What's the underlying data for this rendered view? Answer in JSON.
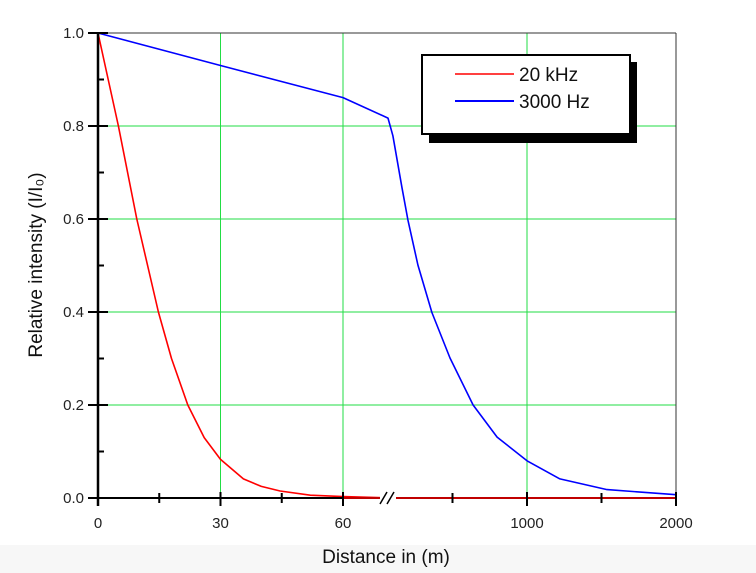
{
  "chart_data": {
    "type": "line",
    "title": "",
    "xlabel": "Distance in (m)",
    "ylabel": "Relative intensity (I/I₀)",
    "ylim": [
      0,
      1.0
    ],
    "x_axis_break": {
      "segments": [
        [
          0,
          60
        ],
        [
          60,
          2000
        ]
      ],
      "break_marker": "//"
    },
    "x_ticks": [
      {
        "value": 0,
        "label": "0"
      },
      {
        "value": 30,
        "label": "30"
      },
      {
        "value": 60,
        "label": "60"
      },
      {
        "value": 1000,
        "label": "1000"
      },
      {
        "value": 2000,
        "label": "2000"
      }
    ],
    "x_minor_ticks": [
      15,
      45,
      500,
      1500
    ],
    "y_ticks": [
      {
        "value": 0.0,
        "label": "0.0"
      },
      {
        "value": 0.2,
        "label": "0.2"
      },
      {
        "value": 0.4,
        "label": "0.4"
      },
      {
        "value": 0.6,
        "label": "0.6"
      },
      {
        "value": 0.8,
        "label": "0.8"
      },
      {
        "value": 1.0,
        "label": "1.0"
      }
    ],
    "y_minor_ticks": [
      0.1,
      0.3,
      0.5,
      0.7,
      0.9
    ],
    "grid": true,
    "grid_color": "#22dd44",
    "legend_position": "top-right",
    "series": [
      {
        "name": "20 kHz",
        "color": "#ff0000",
        "points": [
          [
            0,
            1.0
          ],
          [
            2.5,
            0.9
          ],
          [
            5,
            0.8
          ],
          [
            9.5,
            0.6
          ],
          [
            14.8,
            0.4
          ],
          [
            18,
            0.3
          ],
          [
            22,
            0.2
          ],
          [
            26,
            0.13
          ],
          [
            30,
            0.083
          ],
          [
            35.6,
            0.041
          ],
          [
            40,
            0.025
          ],
          [
            44.6,
            0.015
          ],
          [
            52,
            0.006
          ],
          [
            60,
            0.003
          ],
          [
            100,
            0
          ],
          [
            1000,
            0
          ],
          [
            2000,
            0
          ]
        ]
      },
      {
        "name": "3000 Hz",
        "color": "#0000ff",
        "points": [
          [
            0,
            1.0
          ],
          [
            30,
            0.93
          ],
          [
            60,
            0.861
          ],
          [
            67,
            0.817
          ],
          [
            100,
            0.779
          ],
          [
            161,
            0.667
          ],
          [
            201,
            0.598
          ],
          [
            268,
            0.501
          ],
          [
            362,
            0.399
          ],
          [
            483,
            0.301
          ],
          [
            638,
            0.2
          ],
          [
            799,
            0.131
          ],
          [
            1000,
            0.08
          ],
          [
            1221,
            0.041
          ],
          [
            1537,
            0.018
          ],
          [
            2000,
            0.007
          ]
        ]
      }
    ]
  }
}
